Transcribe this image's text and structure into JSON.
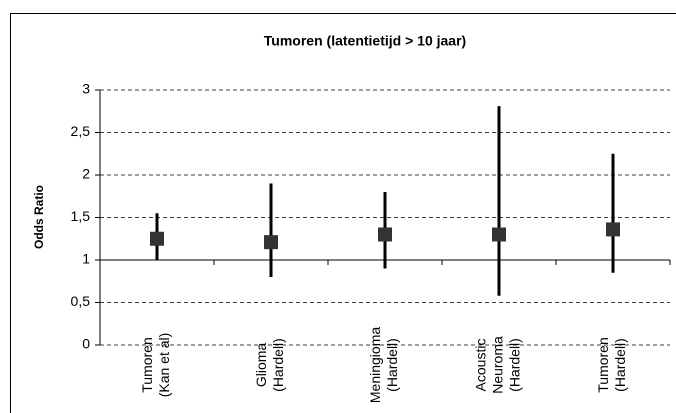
{
  "chart_data": {
    "type": "errorbar",
    "title": "Tumoren (latentietijd > 10 jaar)",
    "ylabel": "Odds Ratio",
    "categories": [
      [
        "Tumoren",
        "(Kan et al)"
      ],
      [
        "Glioma",
        "(Hardell)"
      ],
      [
        "Meningioma",
        "(Hardell)"
      ],
      [
        "Acoustic",
        "Neuroma",
        "(Hardell)"
      ],
      [
        "Tumoren",
        "(Hardell)"
      ]
    ],
    "values": [
      1.25,
      1.21,
      1.3,
      1.3,
      1.36
    ],
    "low": [
      1.0,
      0.8,
      0.9,
      0.58,
      0.85
    ],
    "high": [
      1.55,
      1.9,
      1.8,
      2.81,
      2.25
    ],
    "color": "#333333",
    "ylim": [
      0,
      3
    ],
    "yticks": [
      0,
      {
        "value": 0.5,
        "label": "0,5"
      },
      1,
      {
        "value": 1.5,
        "label": "1,5"
      },
      2,
      {
        "value": 2.5,
        "label": "2,5"
      },
      3
    ],
    "xaxis_at": 1,
    "grid": true
  }
}
